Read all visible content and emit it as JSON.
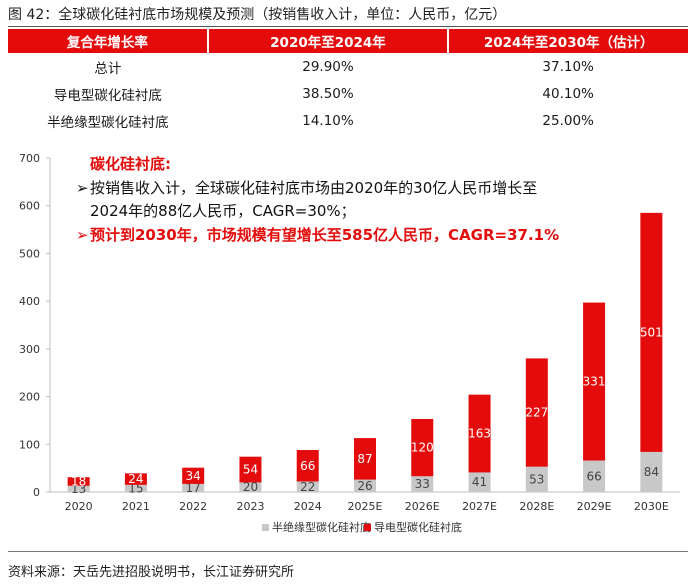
{
  "figure_title": "图 42：全球碳化硅衬底市场规模及预测（按销售收入计，单位：人民币，亿元）",
  "table": {
    "headers": [
      "复合年增长率",
      "2020年至2024年",
      "2024年至2030年（估计）"
    ],
    "rows": [
      [
        "总计",
        "29.90%",
        "37.10%"
      ],
      [
        "导电型碳化硅衬底",
        "38.50%",
        "40.10%"
      ],
      [
        "半绝缘型碳化硅衬底",
        "14.10%",
        "25.00%"
      ]
    ]
  },
  "annotation": {
    "heading": "碳化硅衬底:",
    "bullet_mark": "➢",
    "line1": "按销售收入计，全球碳化硅衬底市场由2020年的30亿人民币增长至",
    "line2": "2024年的88亿人民币，CAGR=30%；",
    "line3": "预计到2030年，市场规模有望增长至585亿人民币，CAGR=37.1%"
  },
  "colors": {
    "red": "#e30b0b",
    "grey": "#c8c8c8",
    "axis": "#bfbfbf"
  },
  "chart_data": {
    "type": "bar",
    "stacked": true,
    "categories": [
      "2020",
      "2021",
      "2022",
      "2023",
      "2024",
      "2025E",
      "2026E",
      "2027E",
      "2028E",
      "2029E",
      "2030E"
    ],
    "series": [
      {
        "name": "半绝缘型碳化硅衬底",
        "color": "#c8c8c8",
        "label_color": "#444444",
        "values": [
          13,
          15,
          17,
          20,
          22,
          26,
          33,
          41,
          53,
          66,
          84
        ]
      },
      {
        "name": "导电型碳化硅衬底",
        "color": "#e30b0b",
        "label_color": "#ffffff",
        "values": [
          18,
          24,
          34,
          54,
          66,
          87,
          120,
          163,
          227,
          331,
          501
        ]
      }
    ],
    "yticks": [
      0,
      100,
      200,
      300,
      400,
      500,
      600,
      700
    ],
    "ylim": [
      0,
      700
    ],
    "legend_position": "bottom"
  },
  "source": "资料来源：天岳先进招股说明书，长江证券研究所"
}
